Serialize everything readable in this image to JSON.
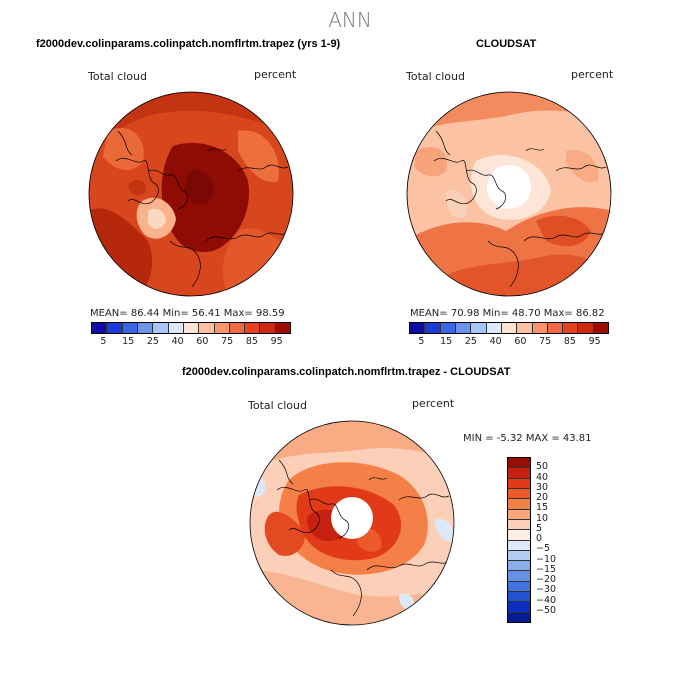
{
  "main_title": "ANN",
  "panels": [
    {
      "title": "f2000dev.colinparams.colinpatch.nomflrtm.trapez (yrs 1-9)",
      "variable_label": "Total cloud",
      "units_label": "percent",
      "stats": "MEAN=  86.44   Min=  56.41   Max=  98.59"
    },
    {
      "title": "CLOUDSAT",
      "variable_label": "Total cloud",
      "units_label": "percent",
      "stats": "MEAN=  70.98   Min=  48.70   Max=  86.82"
    },
    {
      "title": "f2000dev.colinparams.colinpatch.nomflrtm.trapez - CLOUDSAT",
      "variable_label": "Total cloud",
      "units_label": "percent",
      "stats": "MIN =   -5.32  MAX =   43.81"
    }
  ],
  "colorbar_abs": {
    "colors": [
      "#0d0da0",
      "#1c3ad6",
      "#3a66e8",
      "#6d93f0",
      "#a8c4f6",
      "#dce8fb",
      "#fde3d2",
      "#fcc1a0",
      "#f8946c",
      "#ef6a40",
      "#e54420",
      "#cc2a10",
      "#9a0d05"
    ],
    "tick_labels": [
      "5",
      "15",
      "25",
      "40",
      "60",
      "75",
      "85",
      "95"
    ]
  },
  "colorbar_diff": {
    "colors": [
      "#9a0d05",
      "#c52010",
      "#e03a18",
      "#ec5a2c",
      "#f48048",
      "#f9a77a",
      "#fcd0b8",
      "#fdeee6",
      "#dde9f8",
      "#b4ccf2",
      "#8aaeec",
      "#6690e6",
      "#4272e0",
      "#2251d2",
      "#0a2fbf",
      "#061b93"
    ],
    "tick_labels": [
      "50",
      "40",
      "30",
      "20",
      "15",
      "10",
      "5",
      "0",
      "−5",
      "−10",
      "−15",
      "−20",
      "−30",
      "−40",
      "−50"
    ]
  },
  "chart_data": [
    {
      "type": "heatmap",
      "title": "f2000dev.colinparams.colinpatch.nomflrtm.trapez (yrs 1-9)",
      "projection": "polar stereographic (Arctic)",
      "field": "Total cloud",
      "units": "percent",
      "mean": 86.44,
      "min": 56.41,
      "max": 98.59,
      "colorbar_levels": [
        5,
        15,
        25,
        40,
        60,
        75,
        85,
        95
      ]
    },
    {
      "type": "heatmap",
      "title": "CLOUDSAT",
      "projection": "polar stereographic (Arctic)",
      "field": "Total cloud",
      "units": "percent",
      "mean": 70.98,
      "min": 48.7,
      "max": 86.82,
      "colorbar_levels": [
        5,
        15,
        25,
        40,
        60,
        75,
        85,
        95
      ]
    },
    {
      "type": "heatmap",
      "title": "f2000dev.colinparams.colinpatch.nomflrtm.trapez - CLOUDSAT",
      "projection": "polar stereographic (Arctic)",
      "field": "Total cloud difference",
      "units": "percent",
      "min": -5.32,
      "max": 43.81,
      "colorbar_levels": [
        50,
        40,
        30,
        20,
        15,
        10,
        5,
        0,
        -5,
        -10,
        -15,
        -20,
        -30,
        -40,
        -50
      ]
    }
  ]
}
